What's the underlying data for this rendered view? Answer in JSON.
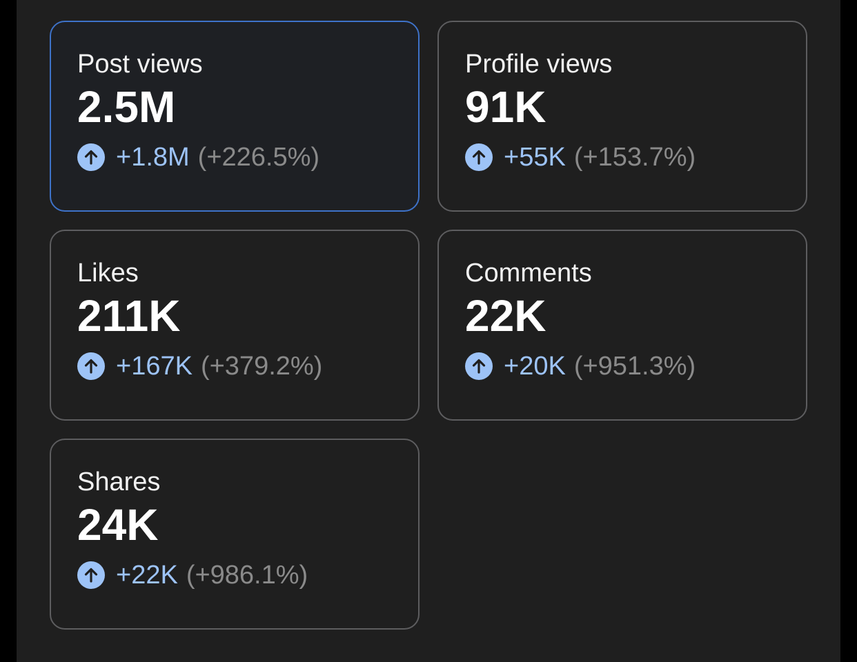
{
  "colors": {
    "background": "#1f1f1f",
    "card_border": "#5d5d5f",
    "selected_border": "#3e72c8",
    "accent": "#9dc3f7",
    "muted": "#8a8a8a"
  },
  "stats": [
    {
      "label": "Post views",
      "value": "2.5M",
      "delta": "+1.8M",
      "delta_pct": "(+226.5%)",
      "icon": "arrow-up-circle-icon",
      "selected": true
    },
    {
      "label": "Profile views",
      "value": "91K",
      "delta": "+55K",
      "delta_pct": "(+153.7%)",
      "icon": "arrow-up-circle-icon",
      "selected": false
    },
    {
      "label": "Likes",
      "value": "211K",
      "delta": "+167K",
      "delta_pct": "(+379.2%)",
      "icon": "arrow-up-circle-icon",
      "selected": false
    },
    {
      "label": "Comments",
      "value": "22K",
      "delta": "+20K",
      "delta_pct": "(+951.3%)",
      "icon": "arrow-up-circle-icon",
      "selected": false
    },
    {
      "label": "Shares",
      "value": "24K",
      "delta": "+22K",
      "delta_pct": "(+986.1%)",
      "icon": "arrow-up-circle-icon",
      "selected": false
    }
  ]
}
